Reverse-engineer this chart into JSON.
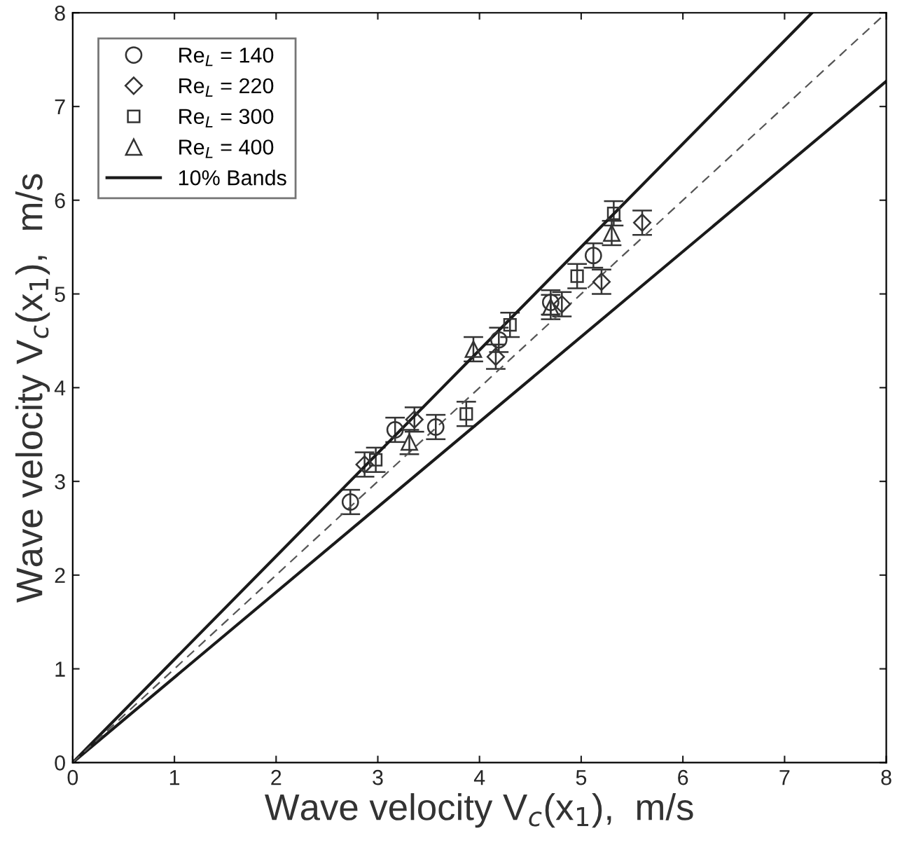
{
  "chart_data": {
    "type": "scatter",
    "xlabel": "Wave velocity V$_{c}$(x$_{1}$),  m/s",
    "ylabel": "Wave velocity V$_{c}$(x$_{1}$),  m/s",
    "xlim": [
      0,
      8
    ],
    "ylim": [
      0,
      8
    ],
    "xticks": [
      0,
      1,
      2,
      3,
      4,
      5,
      6,
      7,
      8
    ],
    "yticks": [
      0,
      1,
      2,
      3,
      4,
      5,
      6,
      7,
      8
    ],
    "grid": false,
    "legend": "top left",
    "series": [
      {
        "name": "Re$_{L}$ = 140",
        "marker": "circle",
        "color": "#333333",
        "x": [
          2.73,
          3.17,
          3.57,
          4.19,
          4.7,
          5.12
        ],
        "values": [
          2.78,
          3.55,
          3.58,
          4.51,
          4.91,
          5.41
        ],
        "errors": [
          0.13,
          0.13,
          0.13,
          0.13,
          0.13,
          0.13
        ]
      },
      {
        "name": "Re$_{L}$ = 220",
        "marker": "diamond",
        "color": "#333333",
        "x": [
          2.87,
          3.36,
          4.16,
          4.81,
          5.2,
          5.6
        ],
        "values": [
          3.18,
          3.66,
          4.33,
          4.89,
          5.13,
          5.76
        ],
        "errors": [
          0.13,
          0.13,
          0.13,
          0.13,
          0.13,
          0.13
        ]
      },
      {
        "name": "Re$_{L}$ = 300",
        "marker": "square",
        "color": "#333333",
        "x": [
          2.98,
          3.87,
          4.3,
          4.96,
          5.32
        ],
        "values": [
          3.23,
          3.72,
          4.67,
          5.19,
          5.86
        ],
        "errors": [
          0.13,
          0.13,
          0.13,
          0.13,
          0.13
        ]
      },
      {
        "name": "Re$_{L}$ = 400",
        "marker": "triangle",
        "color": "#333333",
        "x": [
          3.31,
          3.94,
          4.7,
          5.3
        ],
        "values": [
          3.42,
          4.41,
          4.86,
          5.65
        ],
        "errors": [
          0.13,
          0.13,
          0.13,
          0.13
        ]
      },
      {
        "name": "10% Bands",
        "type": "line",
        "line_style": "solid",
        "color": "#1a1a1a",
        "x": [
          0,
          7.27
        ],
        "values": [
          0,
          8
        ]
      },
      {
        "type": "line",
        "line_style": "solid",
        "color": "#1a1a1a",
        "x": [
          0,
          8
        ],
        "values": [
          0,
          7.27
        ]
      },
      {
        "type": "line",
        "line_style": "dashed",
        "color": "#555555",
        "x": [
          0,
          8
        ],
        "values": [
          0,
          8
        ]
      }
    ]
  }
}
